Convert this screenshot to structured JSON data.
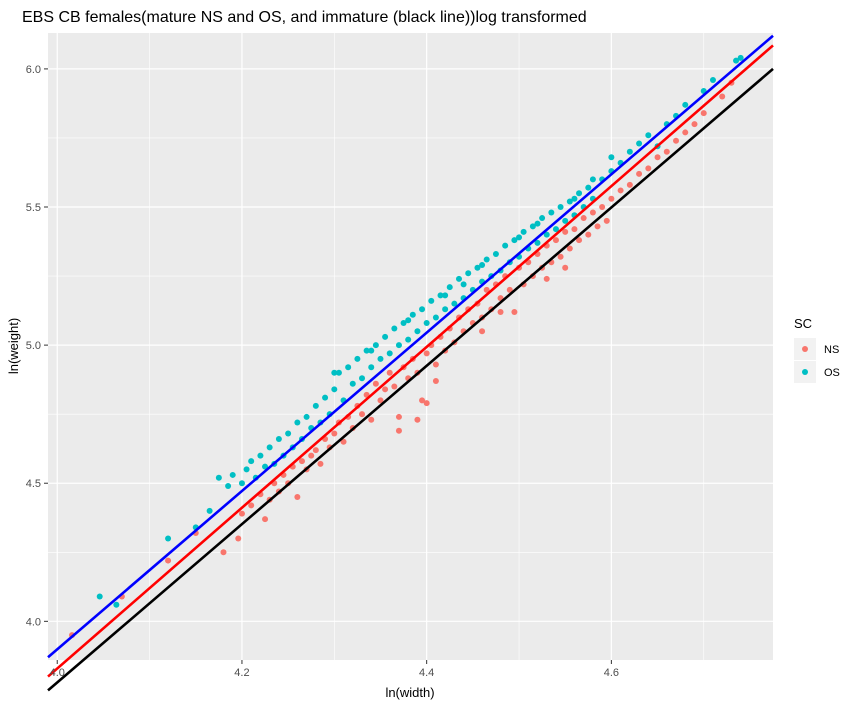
{
  "chart_data": {
    "type": "scatter",
    "title": "EBS CB females(mature NS and OS, and immature (black line))log transformed",
    "xlabel": "ln(width)",
    "ylabel": "ln(weight)",
    "xlim": [
      3.99,
      4.775
    ],
    "ylim": [
      3.86,
      6.13
    ],
    "x_ticks": [
      4.0,
      4.2,
      4.4,
      4.6
    ],
    "x_tick_labels": [
      "4.0",
      "4.2",
      "4.4",
      "4.6"
    ],
    "y_ticks": [
      4.0,
      4.5,
      5.0,
      5.5,
      6.0
    ],
    "y_tick_labels": [
      "4.0",
      "4.5",
      "5.0",
      "5.5",
      "6.0"
    ],
    "grid": true,
    "background": "#ebebeb",
    "legend": {
      "title": "SC",
      "position": "right",
      "entries": [
        "NS",
        "OS"
      ]
    },
    "series": [
      {
        "name": "NS",
        "color": "#f8766d",
        "points": [
          [
            4.016,
            3.95
          ],
          [
            4.07,
            4.09
          ],
          [
            4.12,
            4.22
          ],
          [
            4.15,
            4.32
          ],
          [
            4.18,
            4.25
          ],
          [
            4.196,
            4.3
          ],
          [
            4.2,
            4.39
          ],
          [
            4.21,
            4.42
          ],
          [
            4.22,
            4.46
          ],
          [
            4.225,
            4.37
          ],
          [
            4.23,
            4.44
          ],
          [
            4.235,
            4.5
          ],
          [
            4.24,
            4.47
          ],
          [
            4.245,
            4.53
          ],
          [
            4.25,
            4.5
          ],
          [
            4.255,
            4.56
          ],
          [
            4.26,
            4.45
          ],
          [
            4.265,
            4.58
          ],
          [
            4.27,
            4.55
          ],
          [
            4.275,
            4.6
          ],
          [
            4.28,
            4.62
          ],
          [
            4.285,
            4.57
          ],
          [
            4.29,
            4.66
          ],
          [
            4.295,
            4.63
          ],
          [
            4.3,
            4.68
          ],
          [
            4.305,
            4.72
          ],
          [
            4.31,
            4.65
          ],
          [
            4.315,
            4.74
          ],
          [
            4.32,
            4.7
          ],
          [
            4.325,
            4.78
          ],
          [
            4.33,
            4.75
          ],
          [
            4.335,
            4.82
          ],
          [
            4.34,
            4.73
          ],
          [
            4.345,
            4.86
          ],
          [
            4.35,
            4.8
          ],
          [
            4.355,
            4.84
          ],
          [
            4.36,
            4.9
          ],
          [
            4.365,
            4.85
          ],
          [
            4.37,
            4.74
          ],
          [
            4.375,
            4.92
          ],
          [
            4.38,
            4.88
          ],
          [
            4.385,
            4.95
          ],
          [
            4.39,
            4.9
          ],
          [
            4.395,
            4.8
          ],
          [
            4.4,
            4.97
          ],
          [
            4.405,
            5.0
          ],
          [
            4.41,
            4.93
          ],
          [
            4.415,
            5.03
          ],
          [
            4.42,
            4.98
          ],
          [
            4.425,
            5.06
          ],
          [
            4.43,
            5.01
          ],
          [
            4.435,
            5.1
          ],
          [
            4.44,
            5.05
          ],
          [
            4.445,
            5.13
          ],
          [
            4.45,
            5.08
          ],
          [
            4.455,
            5.15
          ],
          [
            4.46,
            5.1
          ],
          [
            4.465,
            5.2
          ],
          [
            4.47,
            5.13
          ],
          [
            4.475,
            5.22
          ],
          [
            4.48,
            5.17
          ],
          [
            4.485,
            5.25
          ],
          [
            4.49,
            5.2
          ],
          [
            4.495,
            5.12
          ],
          [
            4.5,
            5.28
          ],
          [
            4.505,
            5.22
          ],
          [
            4.51,
            5.3
          ],
          [
            4.515,
            5.25
          ],
          [
            4.52,
            5.33
          ],
          [
            4.525,
            5.28
          ],
          [
            4.53,
            5.36
          ],
          [
            4.535,
            5.3
          ],
          [
            4.54,
            5.38
          ],
          [
            4.545,
            5.32
          ],
          [
            4.55,
            5.41
          ],
          [
            4.555,
            5.35
          ],
          [
            4.56,
            5.42
          ],
          [
            4.565,
            5.38
          ],
          [
            4.57,
            5.46
          ],
          [
            4.575,
            5.4
          ],
          [
            4.58,
            5.48
          ],
          [
            4.585,
            5.43
          ],
          [
            4.59,
            5.5
          ],
          [
            4.595,
            5.45
          ],
          [
            4.6,
            5.53
          ],
          [
            4.61,
            5.56
          ],
          [
            4.62,
            5.58
          ],
          [
            4.63,
            5.62
          ],
          [
            4.64,
            5.64
          ],
          [
            4.65,
            5.68
          ],
          [
            4.66,
            5.7
          ],
          [
            4.67,
            5.74
          ],
          [
            4.68,
            5.77
          ],
          [
            4.69,
            5.8
          ],
          [
            4.7,
            5.84
          ],
          [
            4.72,
            5.9
          ],
          [
            4.73,
            5.95
          ],
          [
            4.39,
            4.73
          ],
          [
            4.4,
            4.79
          ],
          [
            4.46,
            5.05
          ],
          [
            4.48,
            5.12
          ],
          [
            4.53,
            5.24
          ],
          [
            4.55,
            5.28
          ],
          [
            4.37,
            4.69
          ],
          [
            4.41,
            4.87
          ]
        ]
      },
      {
        "name": "OS",
        "color": "#00bfc4",
        "points": [
          [
            4.046,
            4.09
          ],
          [
            4.064,
            4.06
          ],
          [
            4.12,
            4.3
          ],
          [
            4.15,
            4.34
          ],
          [
            4.165,
            4.4
          ],
          [
            4.175,
            4.52
          ],
          [
            4.185,
            4.49
          ],
          [
            4.19,
            4.53
          ],
          [
            4.2,
            4.5
          ],
          [
            4.205,
            4.55
          ],
          [
            4.21,
            4.58
          ],
          [
            4.215,
            4.52
          ],
          [
            4.22,
            4.6
          ],
          [
            4.225,
            4.56
          ],
          [
            4.23,
            4.63
          ],
          [
            4.235,
            4.57
          ],
          [
            4.24,
            4.66
          ],
          [
            4.245,
            4.6
          ],
          [
            4.25,
            4.68
          ],
          [
            4.255,
            4.63
          ],
          [
            4.26,
            4.72
          ],
          [
            4.265,
            4.66
          ],
          [
            4.27,
            4.74
          ],
          [
            4.275,
            4.7
          ],
          [
            4.28,
            4.78
          ],
          [
            4.285,
            4.72
          ],
          [
            4.29,
            4.81
          ],
          [
            4.295,
            4.75
          ],
          [
            4.3,
            4.84
          ],
          [
            4.305,
            4.9
          ],
          [
            4.31,
            4.8
          ],
          [
            4.315,
            4.92
          ],
          [
            4.32,
            4.86
          ],
          [
            4.325,
            4.95
          ],
          [
            4.33,
            4.88
          ],
          [
            4.335,
            4.98
          ],
          [
            4.34,
            4.92
          ],
          [
            4.345,
            5.0
          ],
          [
            4.35,
            4.95
          ],
          [
            4.355,
            5.03
          ],
          [
            4.36,
            4.97
          ],
          [
            4.365,
            5.06
          ],
          [
            4.37,
            5.0
          ],
          [
            4.375,
            5.08
          ],
          [
            4.38,
            5.02
          ],
          [
            4.385,
            5.11
          ],
          [
            4.39,
            5.05
          ],
          [
            4.395,
            5.13
          ],
          [
            4.4,
            5.08
          ],
          [
            4.405,
            5.16
          ],
          [
            4.41,
            5.1
          ],
          [
            4.415,
            5.18
          ],
          [
            4.42,
            5.13
          ],
          [
            4.425,
            5.21
          ],
          [
            4.43,
            5.15
          ],
          [
            4.435,
            5.24
          ],
          [
            4.44,
            5.17
          ],
          [
            4.445,
            5.26
          ],
          [
            4.45,
            5.2
          ],
          [
            4.455,
            5.28
          ],
          [
            4.46,
            5.23
          ],
          [
            4.465,
            5.31
          ],
          [
            4.47,
            5.25
          ],
          [
            4.475,
            5.33
          ],
          [
            4.48,
            5.27
          ],
          [
            4.485,
            5.36
          ],
          [
            4.49,
            5.3
          ],
          [
            4.495,
            5.38
          ],
          [
            4.5,
            5.32
          ],
          [
            4.505,
            5.41
          ],
          [
            4.51,
            5.35
          ],
          [
            4.515,
            5.43
          ],
          [
            4.52,
            5.37
          ],
          [
            4.525,
            5.46
          ],
          [
            4.53,
            5.4
          ],
          [
            4.535,
            5.48
          ],
          [
            4.54,
            5.42
          ],
          [
            4.545,
            5.5
          ],
          [
            4.55,
            5.45
          ],
          [
            4.555,
            5.52
          ],
          [
            4.56,
            5.47
          ],
          [
            4.565,
            5.55
          ],
          [
            4.57,
            5.5
          ],
          [
            4.575,
            5.57
          ],
          [
            4.58,
            5.53
          ],
          [
            4.59,
            5.6
          ],
          [
            4.6,
            5.63
          ],
          [
            4.61,
            5.66
          ],
          [
            4.62,
            5.7
          ],
          [
            4.63,
            5.73
          ],
          [
            4.64,
            5.76
          ],
          [
            4.65,
            5.72
          ],
          [
            4.66,
            5.8
          ],
          [
            4.67,
            5.83
          ],
          [
            4.68,
            5.87
          ],
          [
            4.7,
            5.92
          ],
          [
            4.71,
            5.96
          ],
          [
            4.735,
            6.03
          ],
          [
            4.74,
            6.04
          ],
          [
            4.42,
            5.18
          ],
          [
            4.44,
            5.22
          ],
          [
            4.46,
            5.29
          ],
          [
            4.38,
            5.09
          ],
          [
            4.34,
            4.98
          ],
          [
            4.3,
            4.9
          ],
          [
            4.5,
            5.39
          ],
          [
            4.52,
            5.44
          ],
          [
            4.56,
            5.53
          ],
          [
            4.58,
            5.6
          ],
          [
            4.6,
            5.68
          ]
        ]
      }
    ],
    "fit_lines": [
      {
        "color": "#0000ff",
        "points": [
          [
            3.99,
            3.87
          ],
          [
            4.775,
            6.12
          ]
        ]
      },
      {
        "color": "#ff0000",
        "points": [
          [
            3.99,
            3.8
          ],
          [
            4.775,
            6.085
          ]
        ]
      },
      {
        "color": "#000000",
        "points": [
          [
            3.99,
            3.75
          ],
          [
            4.775,
            6.0
          ]
        ]
      }
    ]
  }
}
